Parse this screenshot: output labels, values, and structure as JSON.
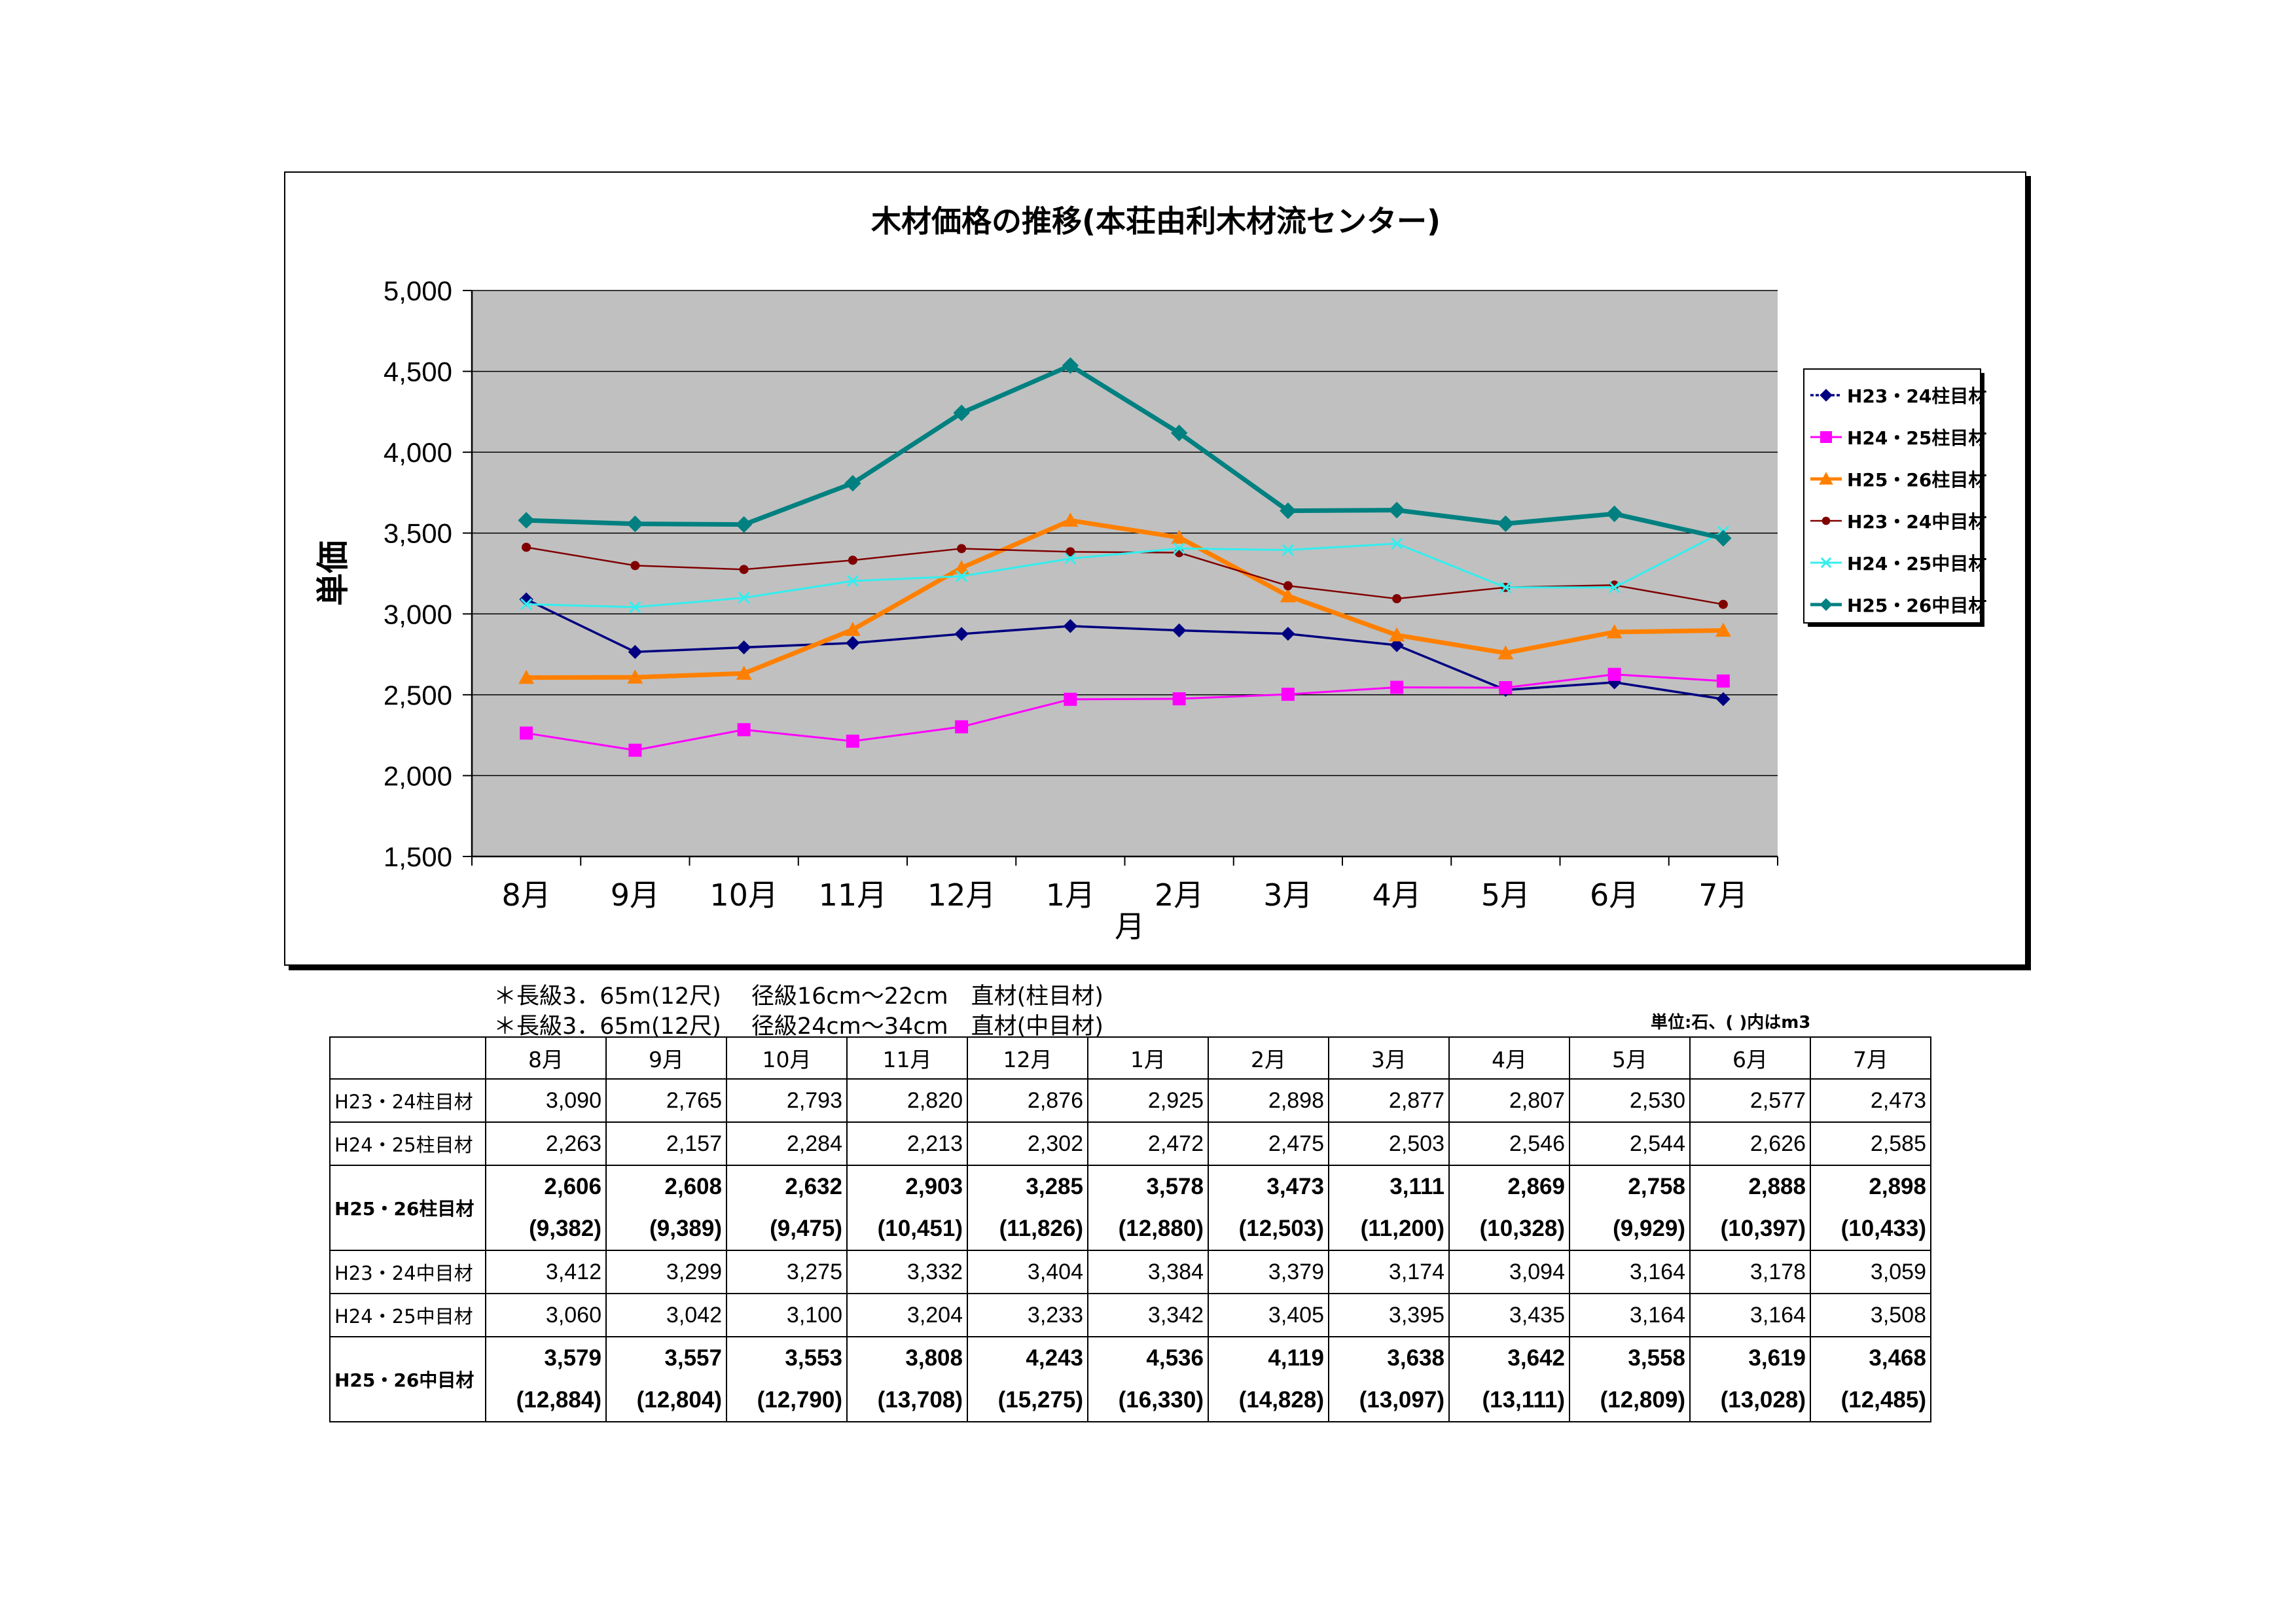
{
  "chart_data": {
    "type": "line",
    "title": "木材価格の推移(本荘由利木材流センター)",
    "xlabel": "月",
    "ylabel": "単価",
    "categories": [
      "8月",
      "9月",
      "10月",
      "11月",
      "12月",
      "1月",
      "2月",
      "3月",
      "4月",
      "5月",
      "6月",
      "7月"
    ],
    "ylim": [
      1500,
      5000
    ],
    "yticks": [
      "1,500",
      "2,000",
      "2,500",
      "3,000",
      "3,500",
      "4,000",
      "4,500",
      "5,000"
    ],
    "grid": true,
    "legend_position": "right",
    "series": [
      {
        "name": "H23・24柱目材",
        "color": "#000080",
        "marker": "diamond",
        "values": [
          3090,
          2765,
          2793,
          2820,
          2876,
          2925,
          2898,
          2877,
          2807,
          2530,
          2577,
          2473
        ]
      },
      {
        "name": "H24・25柱目材",
        "color": "#ff00ff",
        "marker": "square",
        "values": [
          2263,
          2157,
          2284,
          2213,
          2302,
          2472,
          2475,
          2503,
          2546,
          2544,
          2626,
          2585
        ]
      },
      {
        "name": "H25・26柱目材",
        "color": "#ff8000",
        "marker": "triangle",
        "values": [
          2606,
          2608,
          2632,
          2903,
          3285,
          3578,
          3473,
          3111,
          2869,
          2758,
          2888,
          2898
        ]
      },
      {
        "name": "H23・24中目材",
        "color": "#800000",
        "marker": "circle",
        "values": [
          3412,
          3299,
          3275,
          3332,
          3404,
          3384,
          3379,
          3174,
          3094,
          3164,
          3178,
          3059
        ]
      },
      {
        "name": "H24・25中目材",
        "color": "#33eeee",
        "marker": "x",
        "values": [
          3060,
          3042,
          3100,
          3204,
          3233,
          3342,
          3405,
          3395,
          3435,
          3164,
          3164,
          3508
        ]
      },
      {
        "name": "H25・26中目材",
        "color": "#008080",
        "marker": "diamond",
        "values": [
          3579,
          3557,
          3553,
          3808,
          4243,
          4536,
          4119,
          3638,
          3642,
          3558,
          3619,
          3468
        ]
      }
    ]
  },
  "notes": {
    "line1": "＊長級3．65m(12尺)　 径級16cm～22cm　直材(柱目材)",
    "line2": "＊長級3．65m(12尺)　 径級24cm～34cm　直材(中目材)",
    "unit": "単位:石、( )内はm3"
  },
  "table": {
    "header": [
      "8月",
      "9月",
      "10月",
      "11月",
      "12月",
      "1月",
      "2月",
      "3月",
      "4月",
      "5月",
      "6月",
      "7月"
    ],
    "rows": [
      {
        "label": "H23・24柱目材",
        "bold": false,
        "values": [
          "3,090",
          "2,765",
          "2,793",
          "2,820",
          "2,876",
          "2,925",
          "2,898",
          "2,877",
          "2,807",
          "2,530",
          "2,577",
          "2,473"
        ]
      },
      {
        "label": "H24・25柱目材",
        "bold": false,
        "values": [
          "2,263",
          "2,157",
          "2,284",
          "2,213",
          "2,302",
          "2,472",
          "2,475",
          "2,503",
          "2,546",
          "2,544",
          "2,626",
          "2,585"
        ]
      },
      {
        "label": "H25・26柱目材",
        "bold": true,
        "values": [
          "2,606",
          "2,608",
          "2,632",
          "2,903",
          "3,285",
          "3,578",
          "3,473",
          "3,111",
          "2,869",
          "2,758",
          "2,888",
          "2,898"
        ],
        "m3": [
          "(9,382)",
          "(9,389)",
          "(9,475)",
          "(10,451)",
          "(11,826)",
          "(12,880)",
          "(12,503)",
          "(11,200)",
          "(10,328)",
          "(9,929)",
          "(10,397)",
          "(10,433)"
        ]
      },
      {
        "label": "H23・24中目材",
        "bold": false,
        "values": [
          "3,412",
          "3,299",
          "3,275",
          "3,332",
          "3,404",
          "3,384",
          "3,379",
          "3,174",
          "3,094",
          "3,164",
          "3,178",
          "3,059"
        ]
      },
      {
        "label": "H24・25中目材",
        "bold": false,
        "values": [
          "3,060",
          "3,042",
          "3,100",
          "3,204",
          "3,233",
          "3,342",
          "3,405",
          "3,395",
          "3,435",
          "3,164",
          "3,164",
          "3,508"
        ]
      },
      {
        "label": "H25・26中目材",
        "bold": true,
        "values": [
          "3,579",
          "3,557",
          "3,553",
          "3,808",
          "4,243",
          "4,536",
          "4,119",
          "3,638",
          "3,642",
          "3,558",
          "3,619",
          "3,468"
        ],
        "m3": [
          "(12,884)",
          "(12,804)",
          "(12,790)",
          "(13,708)",
          "(15,275)",
          "(16,330)",
          "(14,828)",
          "(13,097)",
          "(13,111)",
          "(12,809)",
          "(13,028)",
          "(12,485)"
        ]
      }
    ]
  }
}
